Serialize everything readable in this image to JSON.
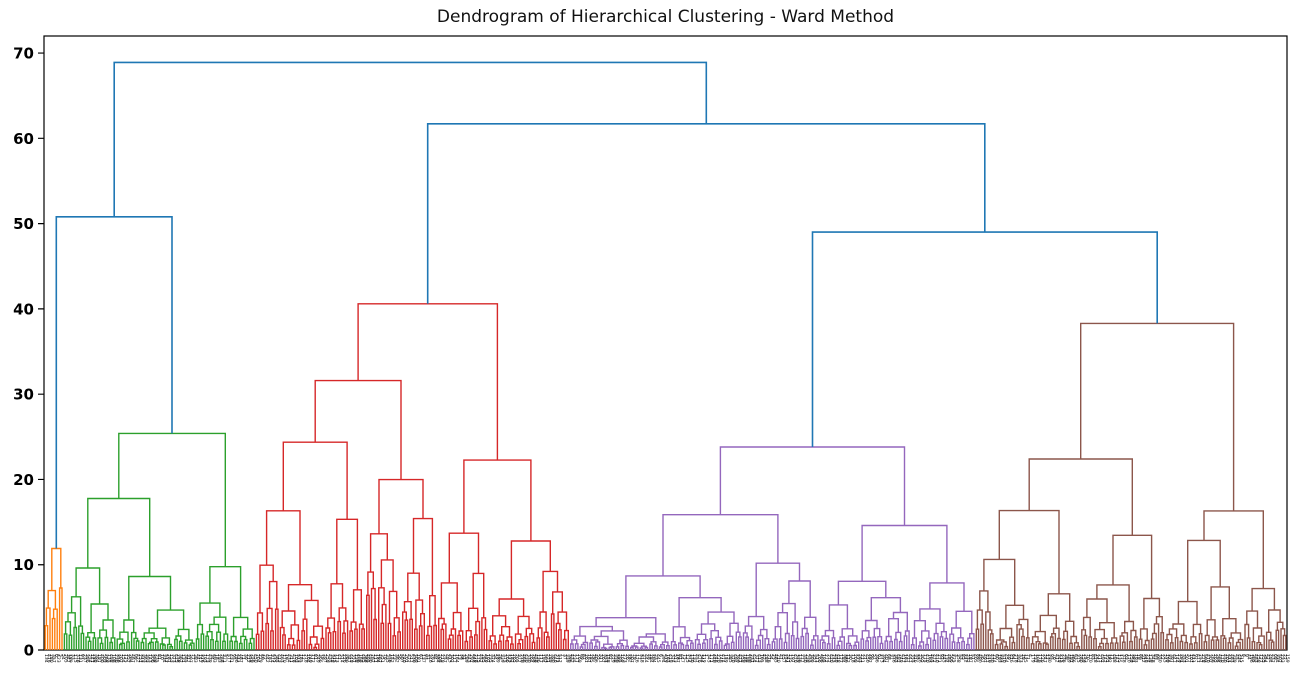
{
  "chart_data": {
    "type": "dendrogram",
    "title": "Dendrogram of Hierarchical Clustering - Ward Method",
    "method": "ward",
    "xlabel": "",
    "ylabel": "",
    "ylim": [
      0,
      72
    ],
    "yticks": [
      0,
      10,
      20,
      30,
      40,
      50,
      60,
      70
    ],
    "grid": false,
    "background": "#ffffff",
    "top_link_color": "#1f77b4",
    "x_axis": {
      "leaf_count": 518,
      "labels_note": "dense sample-index leaf labels, illegible at this scale"
    },
    "clusters": [
      {
        "name": "orange",
        "color": "#ff7f0e",
        "leaves": 8,
        "top_height": 11.9
      },
      {
        "name": "green",
        "color": "#2ca02c",
        "leaves": 80,
        "top_height": 25.4
      },
      {
        "name": "red",
        "color": "#d62728",
        "leaves": 131,
        "top_height": 40.6
      },
      {
        "name": "purple",
        "color": "#9467bd",
        "leaves": 169,
        "top_height": 23.8
      },
      {
        "name": "brown",
        "color": "#8c564b",
        "leaves": 130,
        "top_height": 38.3
      }
    ],
    "top_merges": {
      "height": 68.9,
      "left": {
        "height": 50.8,
        "left": {
          "cluster": "orange"
        },
        "right": {
          "cluster": "green"
        }
      },
      "right": {
        "height": 61.7,
        "left": {
          "cluster": "red"
        },
        "right": {
          "height": 49.0,
          "left": {
            "cluster": "purple"
          },
          "right": {
            "cluster": "brown"
          }
        }
      }
    }
  }
}
